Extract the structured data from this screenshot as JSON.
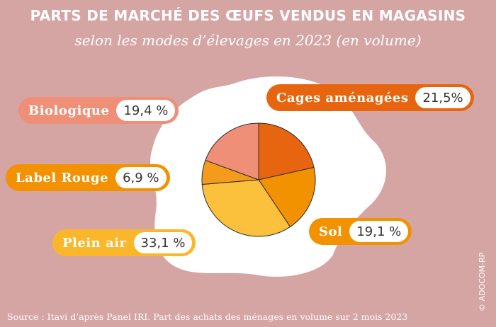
{
  "title": "PARTS DE MARCHÉ DES ŒUFS VENDUS EN MAGASINS",
  "subtitle": "selon les modes d’élevages en 2023 (en volume)",
  "source": "Source : Itavi d’après Panel IRI. Part des achats des ménages en volume sur 2 mois 2023",
  "copyright": "© ADOCOM-RP",
  "colors": {
    "background": "#d5a5a3",
    "egg_white": "#ffffff"
  },
  "labels": {
    "cages": {
      "name": "Cages aménagées",
      "value": "21,5%"
    },
    "sol": {
      "name": "Sol",
      "value": "19,1 %"
    },
    "plein_air": {
      "name": "Plein air",
      "value": "33,1 %"
    },
    "label_rouge": {
      "name": "Label Rouge",
      "value": "6,9 %"
    },
    "biologique": {
      "name": "Biologique",
      "value": "19,4 %"
    }
  },
  "chart_data": {
    "type": "pie",
    "title": "PARTS DE MARCHÉ DES ŒUFS VENDUS EN MAGASINS",
    "subtitle": "selon les modes d’élevages en 2023 (en volume)",
    "start": "top",
    "direction": "clockwise",
    "slices": [
      {
        "name": "Cages aménagées",
        "value": 21.5,
        "color": "#e8650f"
      },
      {
        "name": "Sol",
        "value": 19.1,
        "color": "#f39200"
      },
      {
        "name": "Plein air",
        "value": 33.1,
        "color": "#fbc13d"
      },
      {
        "name": "Label Rouge",
        "value": 6.9,
        "color": "#f49a1c"
      },
      {
        "name": "Biologique",
        "value": 19.4,
        "color": "#f08f78"
      }
    ]
  }
}
